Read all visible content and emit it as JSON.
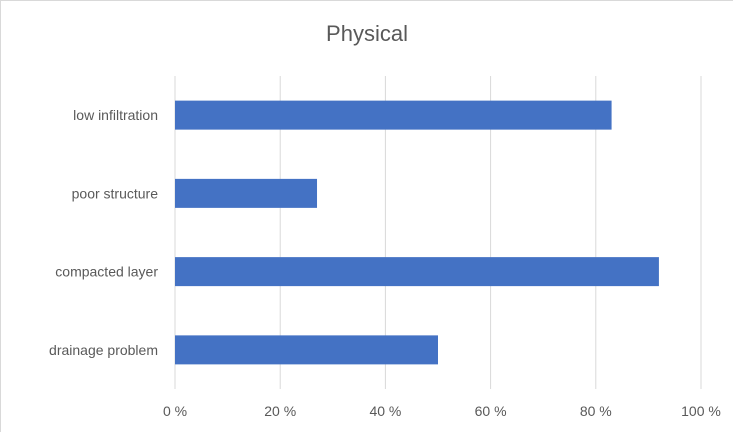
{
  "chart_data": {
    "type": "bar",
    "orientation": "horizontal",
    "title": "Physical",
    "categories": [
      "low infiltration",
      "poor structure",
      "compacted layer",
      "drainage problem"
    ],
    "values": [
      83,
      27,
      92,
      50
    ],
    "xlim": [
      0,
      100
    ],
    "x_ticks": [
      0,
      20,
      40,
      60,
      80,
      100
    ],
    "x_tick_labels": [
      "0 %",
      "20 %",
      "40 %",
      "60 %",
      "80 %",
      "100 %"
    ],
    "grid": "vertical",
    "legend": "none",
    "bar_color": "#4472c4",
    "grid_color": "#d9d9d9"
  }
}
